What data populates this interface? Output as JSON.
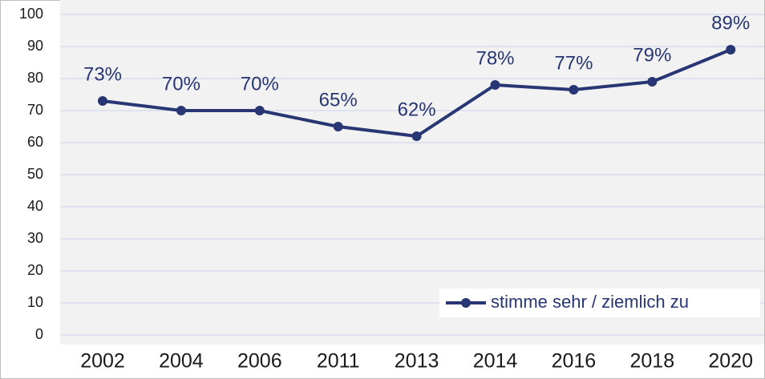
{
  "chart_data": {
    "type": "line",
    "categories": [
      "2002",
      "2004",
      "2006",
      "2011",
      "2013",
      "2014",
      "2016",
      "2018",
      "2020"
    ],
    "series": [
      {
        "name": "stimme sehr / ziemlich zu",
        "color": "#283673",
        "values": [
          73,
          70,
          70,
          65,
          62,
          78,
          76.5,
          79,
          89
        ],
        "value_labels": [
          "73%",
          "70%",
          "70%",
          "65%",
          "62%",
          "78%",
          "77%",
          "79%",
          "89%"
        ]
      }
    ],
    "ylim": [
      0,
      100
    ],
    "yticks": [
      0,
      10,
      20,
      30,
      40,
      50,
      60,
      70,
      80,
      90,
      100
    ],
    "grid": true,
    "legend": "lower right"
  }
}
